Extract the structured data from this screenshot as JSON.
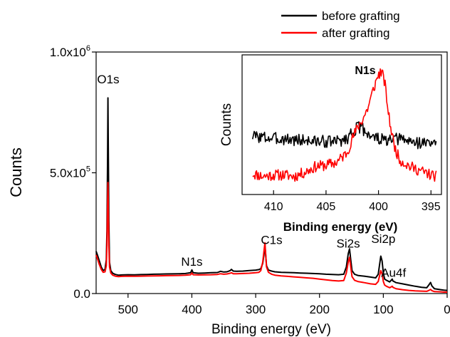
{
  "chart_data": [
    {
      "type": "line",
      "xlabel": "Binding energy (eV)",
      "ylabel": "Counts",
      "xlim": [
        550,
        0
      ],
      "ylim": [
        0,
        1000000
      ],
      "x_ticks": [
        500,
        400,
        300,
        200,
        100,
        0
      ],
      "x_tick_labels": [
        "500",
        "400",
        "300",
        "200",
        "100",
        "0"
      ],
      "y_ticks": [
        0,
        500000,
        1000000
      ],
      "y_tick_labels": [
        {
          "mantissa": "0.0",
          "exp": ""
        },
        {
          "mantissa": "5.0x10",
          "exp": "5"
        },
        {
          "mantissa": "1.0x10",
          "exp": "6"
        }
      ],
      "legend_position": "top-right",
      "series": [
        {
          "name": "before grafting",
          "color": "#000000",
          "points": [
            [
              550,
              175000
            ],
            [
              548,
              160000
            ],
            [
              545,
              135000
            ],
            [
              542,
              110000
            ],
            [
              539,
              95000
            ],
            [
              536,
              100000
            ],
            [
              534,
              140000
            ],
            [
              533,
              260000
            ],
            [
              532,
              560000
            ],
            [
              531.5,
              810000
            ],
            [
              531,
              640000
            ],
            [
              530,
              300000
            ],
            [
              529,
              130000
            ],
            [
              527,
              95000
            ],
            [
              524,
              84000
            ],
            [
              520,
              79000
            ],
            [
              515,
              76000
            ],
            [
              510,
              77000
            ],
            [
              500,
              78000
            ],
            [
              490,
              77500
            ],
            [
              480,
              78500
            ],
            [
              470,
              79000
            ],
            [
              460,
              80000
            ],
            [
              450,
              80500
            ],
            [
              440,
              81000
            ],
            [
              430,
              81500
            ],
            [
              420,
              82000
            ],
            [
              410,
              83000
            ],
            [
              402,
              86000
            ],
            [
              400,
              98000
            ],
            [
              398,
              86000
            ],
            [
              390,
              84000
            ],
            [
              380,
              85000
            ],
            [
              370,
              86000
            ],
            [
              360,
              87000
            ],
            [
              355,
              92000
            ],
            [
              350,
              89000
            ],
            [
              345,
              90000
            ],
            [
              340,
              95000
            ],
            [
              338,
              100000
            ],
            [
              335,
              93000
            ],
            [
              330,
              92000
            ],
            [
              320,
              93000
            ],
            [
              310,
              95000
            ],
            [
              300,
              97000
            ],
            [
              295,
              99000
            ],
            [
              292,
              103000
            ],
            [
              289,
              125000
            ],
            [
              287,
              160000
            ],
            [
              285.5,
              200000
            ],
            [
              284.5,
              165000
            ],
            [
              283,
              115000
            ],
            [
              280,
              97000
            ],
            [
              275,
              93000
            ],
            [
              270,
              90000
            ],
            [
              260,
              88000
            ],
            [
              250,
              87000
            ],
            [
              240,
              86000
            ],
            [
              230,
              85000
            ],
            [
              220,
              84000
            ],
            [
              210,
              83000
            ],
            [
              200,
              82000
            ],
            [
              190,
              80000
            ],
            [
              180,
              79000
            ],
            [
              170,
              78000
            ],
            [
              162,
              80000
            ],
            [
              158,
              110000
            ],
            [
              155,
              165000
            ],
            [
              153,
              185000
            ],
            [
              151,
              140000
            ],
            [
              149,
              95000
            ],
            [
              145,
              80000
            ],
            [
              140,
              75000
            ],
            [
              130,
              72000
            ],
            [
              120,
              68000
            ],
            [
              112,
              65000
            ],
            [
              108,
              80000
            ],
            [
              104,
              155000
            ],
            [
              102,
              135000
            ],
            [
              100,
              85000
            ],
            [
              98,
              60000
            ],
            [
              95,
              55000
            ],
            [
              90,
              48000
            ],
            [
              86,
              60000
            ],
            [
              85,
              52000
            ],
            [
              82,
              48000
            ],
            [
              80,
              45000
            ],
            [
              70,
              40000
            ],
            [
              60,
              35000
            ],
            [
              50,
              30000
            ],
            [
              40,
              26000
            ],
            [
              32,
              24000
            ],
            [
              28,
              38000
            ],
            [
              26,
              46000
            ],
            [
              24,
              32000
            ],
            [
              20,
              20000
            ],
            [
              10,
              16000
            ],
            [
              5,
              14000
            ],
            [
              0,
              13000
            ]
          ]
        },
        {
          "name": "after grafting",
          "color": "#ff0000",
          "points": [
            [
              550,
              160000
            ],
            [
              548,
              145000
            ],
            [
              545,
              120000
            ],
            [
              542,
              100000
            ],
            [
              539,
              88000
            ],
            [
              536,
              90000
            ],
            [
              534,
              115000
            ],
            [
              533,
              200000
            ],
            [
              532,
              380000
            ],
            [
              531.5,
              460000
            ],
            [
              531,
              390000
            ],
            [
              530,
              200000
            ],
            [
              529,
              110000
            ],
            [
              527,
              85000
            ],
            [
              524,
              76000
            ],
            [
              520,
              72000
            ],
            [
              515,
              70000
            ],
            [
              510,
              71000
            ],
            [
              500,
              72000
            ],
            [
              490,
              71500
            ],
            [
              480,
              72000
            ],
            [
              470,
              72500
            ],
            [
              460,
              73000
            ],
            [
              450,
              73500
            ],
            [
              440,
              74000
            ],
            [
              430,
              74500
            ],
            [
              420,
              75000
            ],
            [
              410,
              76000
            ],
            [
              402,
              78000
            ],
            [
              400,
              85000
            ],
            [
              398,
              78000
            ],
            [
              390,
              77000
            ],
            [
              380,
              77500
            ],
            [
              370,
              78000
            ],
            [
              360,
              79000
            ],
            [
              355,
              82000
            ],
            [
              350,
              80000
            ],
            [
              345,
              81000
            ],
            [
              340,
              84000
            ],
            [
              338,
              86000
            ],
            [
              335,
              82000
            ],
            [
              330,
              82000
            ],
            [
              320,
              83000
            ],
            [
              310,
              84000
            ],
            [
              300,
              86000
            ],
            [
              295,
              88000
            ],
            [
              292,
              95000
            ],
            [
              289,
              130000
            ],
            [
              287,
              175000
            ],
            [
              285.5,
              210000
            ],
            [
              284.5,
              170000
            ],
            [
              283,
              110000
            ],
            [
              280,
              88000
            ],
            [
              275,
              80000
            ],
            [
              270,
              76000
            ],
            [
              260,
              73000
            ],
            [
              250,
              71000
            ],
            [
              240,
              69000
            ],
            [
              230,
              67000
            ],
            [
              220,
              65000
            ],
            [
              210,
              63000
            ],
            [
              200,
              60000
            ],
            [
              190,
              57000
            ],
            [
              180,
              54000
            ],
            [
              170,
              52000
            ],
            [
              162,
              54000
            ],
            [
              158,
              85000
            ],
            [
              155,
              130000
            ],
            [
              153,
              150000
            ],
            [
              151,
              110000
            ],
            [
              149,
              70000
            ],
            [
              145,
              55000
            ],
            [
              140,
              50000
            ],
            [
              130,
              45000
            ],
            [
              120,
              40000
            ],
            [
              112,
              38000
            ],
            [
              108,
              50000
            ],
            [
              104,
              95000
            ],
            [
              102,
              82000
            ],
            [
              100,
              50000
            ],
            [
              98,
              35000
            ],
            [
              95,
              30000
            ],
            [
              90,
              24000
            ],
            [
              86,
              30000
            ],
            [
              85,
              26000
            ],
            [
              82,
              22000
            ],
            [
              80,
              20000
            ],
            [
              70,
              16000
            ],
            [
              60,
              13000
            ],
            [
              50,
              11000
            ],
            [
              40,
              10000
            ],
            [
              32,
              9000
            ],
            [
              28,
              14000
            ],
            [
              26,
              17000
            ],
            [
              24,
              12000
            ],
            [
              20,
              8000
            ],
            [
              10,
              7000
            ],
            [
              5,
              6000
            ],
            [
              0,
              6000
            ]
          ]
        }
      ],
      "annotations": [
        {
          "text": "O1s",
          "x": 531,
          "y": 870000
        },
        {
          "text": "N1s",
          "x": 400,
          "y": 115000
        },
        {
          "text": "C1s",
          "x": 275,
          "y": 205000
        },
        {
          "text": "Si2s",
          "x": 155,
          "y": 190000
        },
        {
          "text": "Si2p",
          "x": 100,
          "y": 210000
        },
        {
          "text": "Au4f",
          "x": 84,
          "y": 70000
        }
      ]
    },
    {
      "type": "line",
      "xlabel": "Binding energy (eV)",
      "ylabel": "Counts",
      "title": "N1s",
      "xlim": [
        413,
        394
      ],
      "ylim": [
        0,
        1
      ],
      "x_ticks": [
        410,
        405,
        400,
        395
      ],
      "x_tick_labels": [
        "410",
        "405",
        "400",
        "395"
      ],
      "series": [
        {
          "name": "before grafting",
          "color": "#000000",
          "seed": 3,
          "noise": 0.045,
          "points": [
            [
              412,
              0.42
            ],
            [
              411,
              0.41
            ],
            [
              410,
              0.4
            ],
            [
              409,
              0.4
            ],
            [
              408,
              0.39
            ],
            [
              407,
              0.39
            ],
            [
              406,
              0.38
            ],
            [
              405,
              0.38
            ],
            [
              404,
              0.38
            ],
            [
              403,
              0.4
            ],
            [
              402.5,
              0.45
            ],
            [
              402,
              0.48
            ],
            [
              401.5,
              0.47
            ],
            [
              401,
              0.44
            ],
            [
              400.5,
              0.41
            ],
            [
              400,
              0.4
            ],
            [
              399.5,
              0.39
            ],
            [
              399,
              0.38
            ],
            [
              398,
              0.4
            ],
            [
              397,
              0.38
            ],
            [
              396,
              0.37
            ],
            [
              395,
              0.37
            ],
            [
              394.5,
              0.36
            ]
          ]
        },
        {
          "name": "after grafting",
          "color": "#ff0000",
          "seed": 11,
          "noise": 0.04,
          "points": [
            [
              412,
              0.15
            ],
            [
              411,
              0.13
            ],
            [
              410,
              0.14
            ],
            [
              409,
              0.14
            ],
            [
              408,
              0.13
            ],
            [
              407,
              0.16
            ],
            [
              406,
              0.2
            ],
            [
              405,
              0.21
            ],
            [
              404,
              0.23
            ],
            [
              403,
              0.3
            ],
            [
              402.5,
              0.4
            ],
            [
              402,
              0.48
            ],
            [
              401.5,
              0.54
            ],
            [
              401,
              0.62
            ],
            [
              400.5,
              0.75
            ],
            [
              400,
              0.86
            ],
            [
              399.7,
              0.88
            ],
            [
              399.4,
              0.8
            ],
            [
              399,
              0.55
            ],
            [
              398.5,
              0.35
            ],
            [
              398,
              0.25
            ],
            [
              397,
              0.2
            ],
            [
              396,
              0.17
            ],
            [
              395,
              0.14
            ],
            [
              394.5,
              0.13
            ]
          ]
        }
      ]
    }
  ]
}
